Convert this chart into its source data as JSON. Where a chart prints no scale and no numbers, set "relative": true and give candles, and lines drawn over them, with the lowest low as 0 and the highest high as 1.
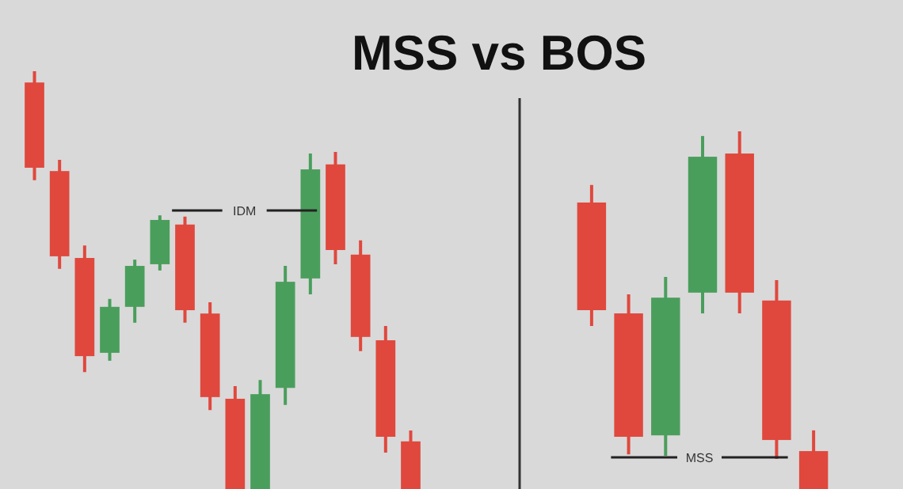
{
  "chart_data": [
    {
      "type": "candlestick",
      "title": "MSS vs BOS",
      "relative": true,
      "categories": [
        null,
        null,
        null,
        null,
        null,
        null,
        null,
        null,
        null,
        null,
        null,
        null,
        null,
        null,
        null,
        null
      ],
      "ohlc": [
        [
          0.973,
          1,
          0.739,
          0.769
        ],
        [
          0.761,
          0.788,
          0.527,
          0.557
        ],
        [
          0.553,
          0.583,
          0.28,
          0.318
        ],
        [
          0.326,
          0.455,
          0.307,
          0.436
        ],
        [
          0.436,
          0.549,
          0.398,
          0.534
        ],
        [
          0.538,
          0.655,
          0.523,
          0.644
        ],
        [
          0.633,
          0.652,
          0.398,
          0.428
        ],
        [
          0.42,
          0.447,
          0.189,
          0.22
        ],
        [
          0.216,
          0.246,
          0,
          0
        ],
        [
          0,
          0.261,
          0,
          0.227
        ],
        [
          0.242,
          0.534,
          0.201,
          0.496
        ],
        [
          0.504,
          0.803,
          0.466,
          0.765
        ],
        [
          0.777,
          0.807,
          0.538,
          0.572
        ],
        [
          0.561,
          0.595,
          0.33,
          0.364
        ],
        [
          0.356,
          0.39,
          0.087,
          0.125
        ],
        [
          0.114,
          0.14,
          0,
          0
        ]
      ],
      "colors": [
        "#e0483d",
        "#e0483d",
        "#e0483d",
        "#4a9e5c",
        "#4a9e5c",
        "#4a9e5c",
        "#e0483d",
        "#e0483d",
        "#e0483d",
        "#4a9e5c",
        "#4a9e5c",
        "#4a9e5c",
        "#e0483d",
        "#e0483d",
        "#e0483d",
        "#e0483d"
      ],
      "annotations": [
        "IDM"
      ]
    },
    {
      "type": "candlestick",
      "relative": true,
      "categories": [
        null,
        null,
        null,
        null,
        null,
        null,
        null
      ],
      "ohlc": [
        [
          0.801,
          0.85,
          0.456,
          0.5
        ],
        [
          0.491,
          0.544,
          0.097,
          0.146
        ],
        [
          0.15,
          0.593,
          0.093,
          0.535
        ],
        [
          0.549,
          0.987,
          0.491,
          0.929
        ],
        [
          0.938,
          1,
          0.491,
          0.549
        ],
        [
          0.527,
          0.584,
          0.084,
          0.137
        ],
        [
          0.106,
          0.164,
          0,
          0
        ]
      ],
      "colors": [
        "#e0483d",
        "#e0483d",
        "#4a9e5c",
        "#4a9e5c",
        "#e0483d",
        "#e0483d",
        "#e0483d"
      ],
      "annotations": [
        "MSS"
      ]
    }
  ]
}
